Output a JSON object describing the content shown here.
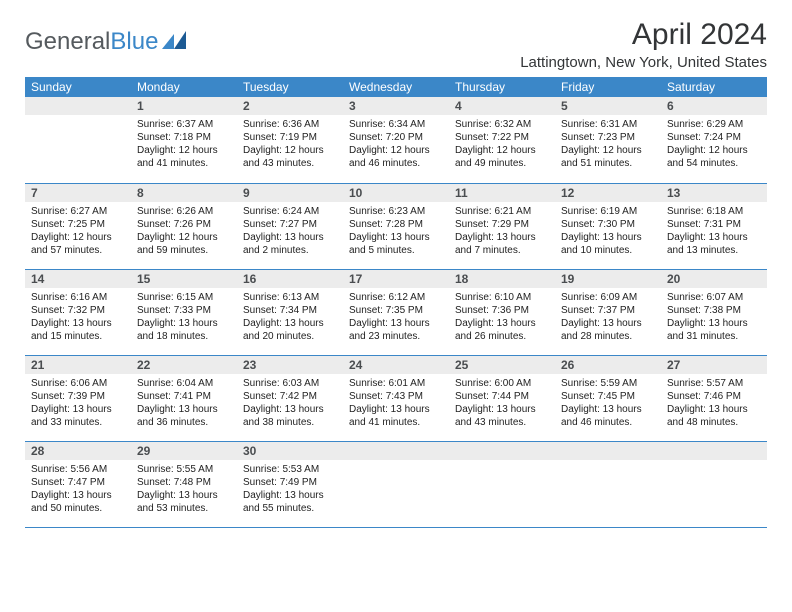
{
  "logo": {
    "text1": "General",
    "text2": "Blue"
  },
  "title": "April 2024",
  "location": "Lattingtown, New York, United States",
  "colors": {
    "header_bg": "#3b87c8",
    "header_fg": "#ffffff",
    "daynum_bg": "#ececec",
    "rule": "#3b87c8"
  },
  "typography": {
    "title_fontsize": 30,
    "location_fontsize": 15,
    "th_fontsize": 12,
    "cell_fontsize": 10
  },
  "weekdays": [
    "Sunday",
    "Monday",
    "Tuesday",
    "Wednesday",
    "Thursday",
    "Friday",
    "Saturday"
  ],
  "weeks": [
    [
      {
        "n": "",
        "lines": []
      },
      {
        "n": "1",
        "lines": [
          "Sunrise: 6:37 AM",
          "Sunset: 7:18 PM",
          "Daylight: 12 hours and 41 minutes."
        ]
      },
      {
        "n": "2",
        "lines": [
          "Sunrise: 6:36 AM",
          "Sunset: 7:19 PM",
          "Daylight: 12 hours and 43 minutes."
        ]
      },
      {
        "n": "3",
        "lines": [
          "Sunrise: 6:34 AM",
          "Sunset: 7:20 PM",
          "Daylight: 12 hours and 46 minutes."
        ]
      },
      {
        "n": "4",
        "lines": [
          "Sunrise: 6:32 AM",
          "Sunset: 7:22 PM",
          "Daylight: 12 hours and 49 minutes."
        ]
      },
      {
        "n": "5",
        "lines": [
          "Sunrise: 6:31 AM",
          "Sunset: 7:23 PM",
          "Daylight: 12 hours and 51 minutes."
        ]
      },
      {
        "n": "6",
        "lines": [
          "Sunrise: 6:29 AM",
          "Sunset: 7:24 PM",
          "Daylight: 12 hours and 54 minutes."
        ]
      }
    ],
    [
      {
        "n": "7",
        "lines": [
          "Sunrise: 6:27 AM",
          "Sunset: 7:25 PM",
          "Daylight: 12 hours and 57 minutes."
        ]
      },
      {
        "n": "8",
        "lines": [
          "Sunrise: 6:26 AM",
          "Sunset: 7:26 PM",
          "Daylight: 12 hours and 59 minutes."
        ]
      },
      {
        "n": "9",
        "lines": [
          "Sunrise: 6:24 AM",
          "Sunset: 7:27 PM",
          "Daylight: 13 hours and 2 minutes."
        ]
      },
      {
        "n": "10",
        "lines": [
          "Sunrise: 6:23 AM",
          "Sunset: 7:28 PM",
          "Daylight: 13 hours and 5 minutes."
        ]
      },
      {
        "n": "11",
        "lines": [
          "Sunrise: 6:21 AM",
          "Sunset: 7:29 PM",
          "Daylight: 13 hours and 7 minutes."
        ]
      },
      {
        "n": "12",
        "lines": [
          "Sunrise: 6:19 AM",
          "Sunset: 7:30 PM",
          "Daylight: 13 hours and 10 minutes."
        ]
      },
      {
        "n": "13",
        "lines": [
          "Sunrise: 6:18 AM",
          "Sunset: 7:31 PM",
          "Daylight: 13 hours and 13 minutes."
        ]
      }
    ],
    [
      {
        "n": "14",
        "lines": [
          "Sunrise: 6:16 AM",
          "Sunset: 7:32 PM",
          "Daylight: 13 hours and 15 minutes."
        ]
      },
      {
        "n": "15",
        "lines": [
          "Sunrise: 6:15 AM",
          "Sunset: 7:33 PM",
          "Daylight: 13 hours and 18 minutes."
        ]
      },
      {
        "n": "16",
        "lines": [
          "Sunrise: 6:13 AM",
          "Sunset: 7:34 PM",
          "Daylight: 13 hours and 20 minutes."
        ]
      },
      {
        "n": "17",
        "lines": [
          "Sunrise: 6:12 AM",
          "Sunset: 7:35 PM",
          "Daylight: 13 hours and 23 minutes."
        ]
      },
      {
        "n": "18",
        "lines": [
          "Sunrise: 6:10 AM",
          "Sunset: 7:36 PM",
          "Daylight: 13 hours and 26 minutes."
        ]
      },
      {
        "n": "19",
        "lines": [
          "Sunrise: 6:09 AM",
          "Sunset: 7:37 PM",
          "Daylight: 13 hours and 28 minutes."
        ]
      },
      {
        "n": "20",
        "lines": [
          "Sunrise: 6:07 AM",
          "Sunset: 7:38 PM",
          "Daylight: 13 hours and 31 minutes."
        ]
      }
    ],
    [
      {
        "n": "21",
        "lines": [
          "Sunrise: 6:06 AM",
          "Sunset: 7:39 PM",
          "Daylight: 13 hours and 33 minutes."
        ]
      },
      {
        "n": "22",
        "lines": [
          "Sunrise: 6:04 AM",
          "Sunset: 7:41 PM",
          "Daylight: 13 hours and 36 minutes."
        ]
      },
      {
        "n": "23",
        "lines": [
          "Sunrise: 6:03 AM",
          "Sunset: 7:42 PM",
          "Daylight: 13 hours and 38 minutes."
        ]
      },
      {
        "n": "24",
        "lines": [
          "Sunrise: 6:01 AM",
          "Sunset: 7:43 PM",
          "Daylight: 13 hours and 41 minutes."
        ]
      },
      {
        "n": "25",
        "lines": [
          "Sunrise: 6:00 AM",
          "Sunset: 7:44 PM",
          "Daylight: 13 hours and 43 minutes."
        ]
      },
      {
        "n": "26",
        "lines": [
          "Sunrise: 5:59 AM",
          "Sunset: 7:45 PM",
          "Daylight: 13 hours and 46 minutes."
        ]
      },
      {
        "n": "27",
        "lines": [
          "Sunrise: 5:57 AM",
          "Sunset: 7:46 PM",
          "Daylight: 13 hours and 48 minutes."
        ]
      }
    ],
    [
      {
        "n": "28",
        "lines": [
          "Sunrise: 5:56 AM",
          "Sunset: 7:47 PM",
          "Daylight: 13 hours and 50 minutes."
        ]
      },
      {
        "n": "29",
        "lines": [
          "Sunrise: 5:55 AM",
          "Sunset: 7:48 PM",
          "Daylight: 13 hours and 53 minutes."
        ]
      },
      {
        "n": "30",
        "lines": [
          "Sunrise: 5:53 AM",
          "Sunset: 7:49 PM",
          "Daylight: 13 hours and 55 minutes."
        ]
      },
      {
        "n": "",
        "lines": []
      },
      {
        "n": "",
        "lines": []
      },
      {
        "n": "",
        "lines": []
      },
      {
        "n": "",
        "lines": []
      }
    ]
  ]
}
